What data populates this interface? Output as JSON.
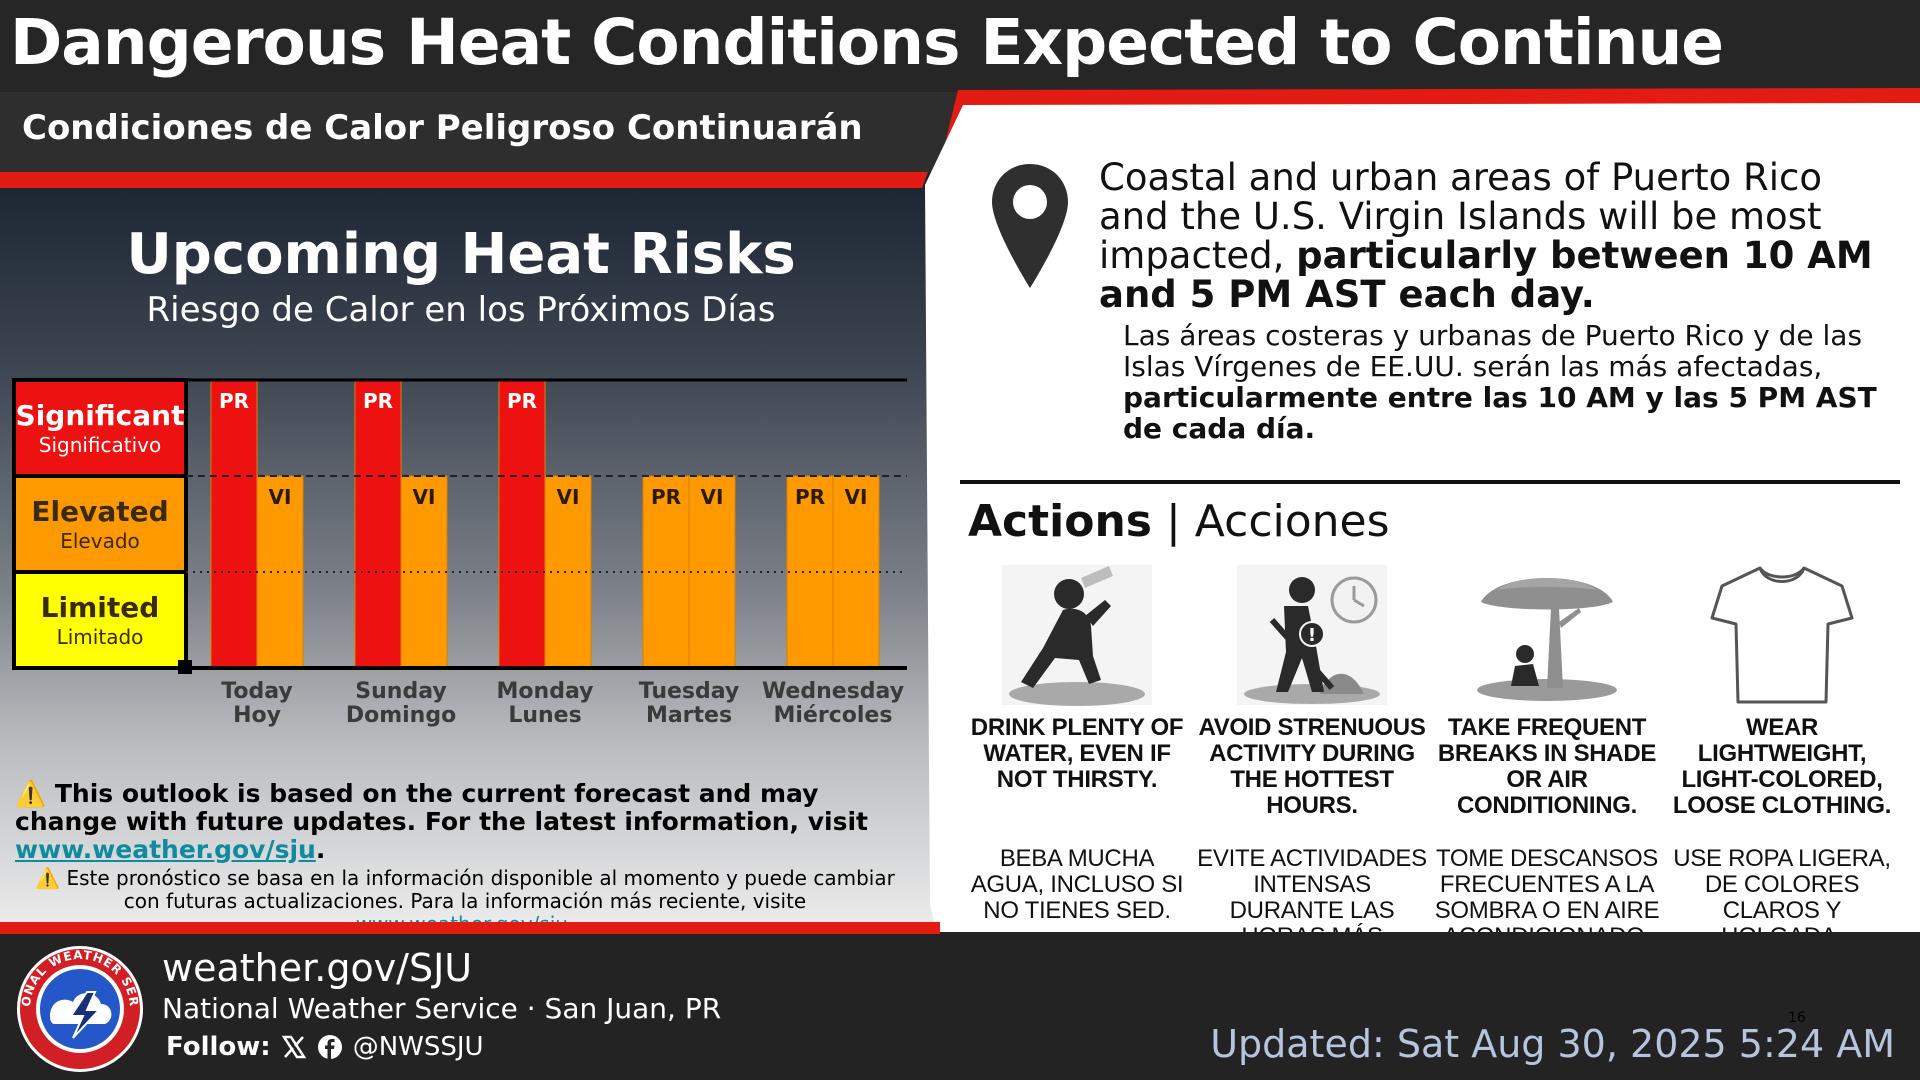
{
  "header": {
    "title": "Dangerous Heat Conditions Expected to Continue",
    "subtitle": "Condiciones de Calor Peligroso Continuarán"
  },
  "left_panel": {
    "title": "Upcoming Heat Risks",
    "subtitle": "Riesgo de Calor en los Próximos Días"
  },
  "chart_data": {
    "type": "bar",
    "categories": [
      "Today",
      "Sunday",
      "Monday",
      "Tuesday",
      "Wednesday"
    ],
    "categories_es": [
      "Hoy",
      "Domingo",
      "Lunes",
      "Martes",
      "Miércoles"
    ],
    "levels": [
      {
        "en": "Significant",
        "es": "Significativo",
        "color": "#ee1111"
      },
      {
        "en": "Elevated",
        "es": "Elevado",
        "color": "#ff9900"
      },
      {
        "en": "Limited",
        "es": "Limitado",
        "color": "#ffff00"
      }
    ],
    "series": [
      {
        "name": "PR",
        "values": [
          3,
          3,
          3,
          2,
          2
        ]
      },
      {
        "name": "VI",
        "values": [
          2,
          2,
          2,
          2,
          2
        ]
      }
    ],
    "ylim": [
      0,
      3
    ]
  },
  "notes": {
    "en_prefix": "This outlook is based on the current forecast and may change with future updates. For the latest information, visit ",
    "en_link": "www.weather.gov/sju",
    "en_suffix": ".",
    "es_prefix": "Este pronóstico se basa en la información disponible al momento y puede cambiar con futuras actualizaciones. Para la información más reciente, visite ",
    "es_link": "www.weather.gov/sju",
    "es_suffix": ".",
    "warning_glyph": "⚠️"
  },
  "location": {
    "en_plain": "Coastal and urban areas of Puerto Rico and the U.S. Virgin Islands will be most impacted, ",
    "en_bold": "particularly between 10 AM and 5 PM AST each day.",
    "es_plain": "Las áreas costeras y urbanas de Puerto Rico y de las Islas Vírgenes de EE.UU. serán las más afectadas, ",
    "es_bold": "particularmente entre las 10 AM y las 5 PM AST de cada día."
  },
  "actions": {
    "title_bold": "Actions",
    "title_sep": " | ",
    "title_rest": "Acciones",
    "items": [
      {
        "icon": "drinking-water-icon",
        "en": "DRINK PLENTY OF WATER, EVEN IF NOT THIRSTY.",
        "es": "BEBA MUCHA AGUA, INCLUSO SI NO TIENES SED."
      },
      {
        "icon": "strenuous-work-icon",
        "en": "AVOID STRENUOUS ACTIVITY DURING THE HOTTEST HOURS.",
        "es": "EVITE ACTIVIDADES INTENSAS DURANTE LAS HORAS MÁS CALIENTES."
      },
      {
        "icon": "shade-tree-icon",
        "en": "TAKE FREQUENT BREAKS IN SHADE OR AIR CONDITIONING.",
        "es": "TOME DESCANSOS FRECUENTES A LA SOMBRA O EN AIRE ACONDICIONADO."
      },
      {
        "icon": "tshirt-icon",
        "en": "WEAR LIGHTWEIGHT, LIGHT-COLORED, LOOSE CLOTHING.",
        "es": "USE ROPA LIGERA, DE COLORES CLAROS Y HOLGADA."
      }
    ]
  },
  "footer": {
    "url": "weather.gov/SJU",
    "office": "National Weather Service · San Juan, PR",
    "follow_label": "Follow:",
    "handle": "@NWSSJU",
    "updated": "Updated: Sat Aug 30, 2025 5:24 AM",
    "page_number": "16",
    "logo_text": "NATIONAL WEATHER SERVICE"
  },
  "colors": {
    "accent_red": "#e21b13",
    "significant": "#ee1111",
    "elevated": "#ff9900",
    "limited": "#ffff00",
    "updated_text": "#b6c5dd",
    "link": "#0f8a9e"
  }
}
